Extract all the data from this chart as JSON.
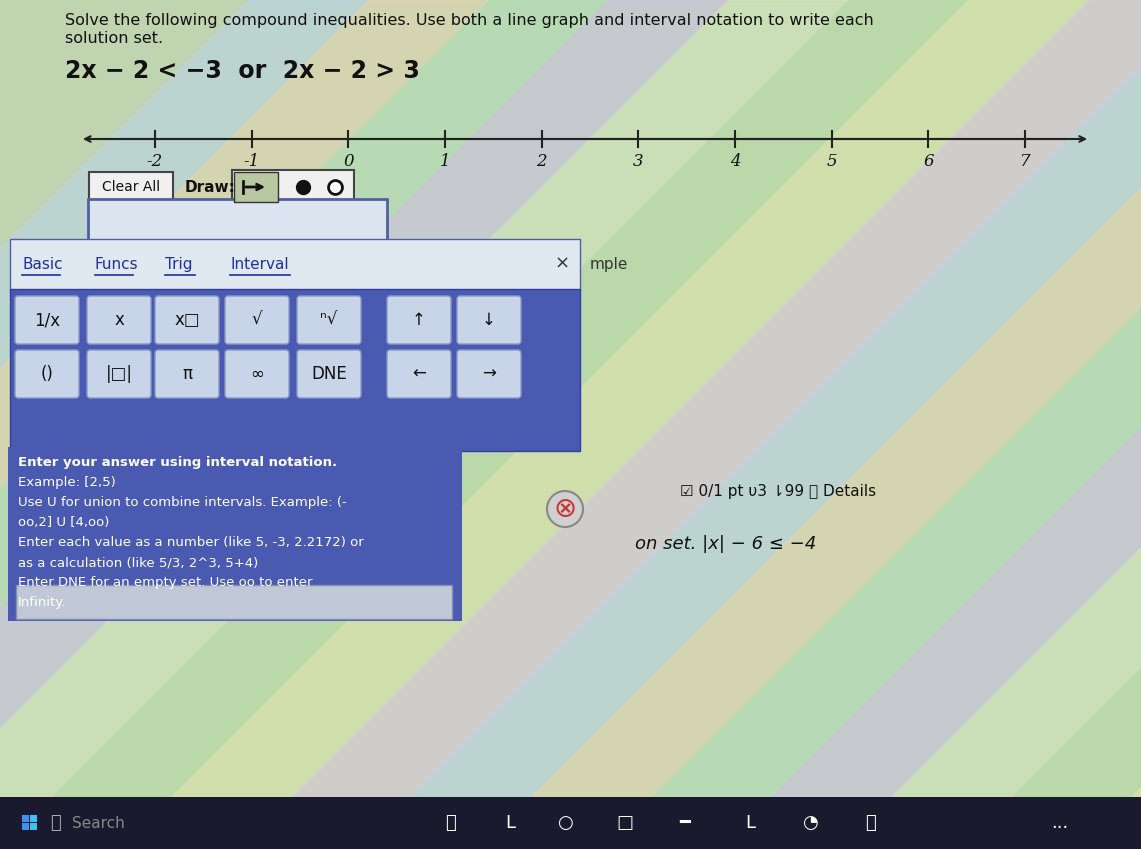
{
  "title_line1": "Solve the following compound inequalities. Use both a line graph and interval notation to write each",
  "title_line2": "solution set.",
  "inequality": "2x − 2 < −3  or  2x − 2 > 3",
  "tick_labels": [
    -2,
    -1,
    0,
    1,
    2,
    3,
    4,
    5,
    6,
    7
  ],
  "clear_all_label": "Clear All",
  "draw_label": "Draw:",
  "basic_label": "Basic",
  "funcs_label": "Funcs",
  "trig_label": "Trig",
  "interval_label": "Interval",
  "x_close": "×",
  "mple_label": "mple",
  "btn_row1": [
    "1/x",
    "x",
    "x□",
    "√",
    "ⁿ√",
    "↑",
    "↓"
  ],
  "btn_row2": [
    "()",
    "|□|",
    "π",
    "∞",
    "DNE",
    "←",
    "→"
  ],
  "instructions_lines": [
    "Enter your answer using interval notation.",
    "Example: [2,5)",
    "Use U for union to combine intervals. Example: (-",
    "oo,2] U [4,oo)",
    "Enter each value as a number (like 5, -3, 2.2172) or",
    "as a calculation (like 5/3, 2^3, 5+4)",
    "Enter DNE for an empty set. Use oo to enter",
    "Infinity."
  ],
  "score_label": "☑ 0/1 pt υ3 ⇂99 ⓘ Details",
  "on_set_label": "on set. |x| − 6 ≤ −4",
  "search_label": "Search",
  "stripe_colors": [
    "#b8dca8",
    "#dce8a8",
    "#dcc8e0",
    "#b8d4ec",
    "#e8d4b0",
    "#b0e0b8",
    "#ccc0e8",
    "#d4e8c0"
  ],
  "panel_bg": "#4a5ab0",
  "panel_border": "#2a3a90",
  "btn_bg": "#d0d8e8",
  "btn_border": "#8898b8",
  "tab_area_bg": "#e8eef8",
  "instr_bg": "#4a5ab0",
  "taskbar_bg": "#1a1a2e",
  "input_box_bg": "#d8dce8",
  "input_box_border": "#6070a0"
}
